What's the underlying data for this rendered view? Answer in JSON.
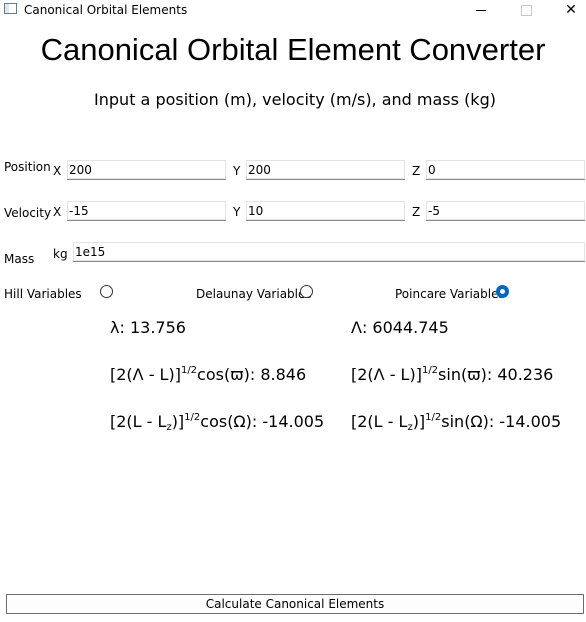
{
  "window": {
    "title": "Canonical Orbital Elements",
    "close_glyph": "✕"
  },
  "header": {
    "title": "Canonical Orbital Element Converter",
    "subtitle": "Input a position (m), velocity (m/s), and mass (kg)"
  },
  "position": {
    "label": "Position",
    "x_label": "X",
    "x_value": "200",
    "y_label": "Y",
    "y_value": "200",
    "z_label": "Z",
    "z_value": "0"
  },
  "velocity": {
    "label": "Velocity",
    "x_label": "X",
    "x_value": "-15",
    "y_label": "Y",
    "y_value": "10",
    "z_label": "Z",
    "z_value": "-5"
  },
  "mass": {
    "label": "Mass",
    "unit": "kg",
    "value": "1e15"
  },
  "variable_options": {
    "selected": "Poincare Variables",
    "options": [
      "Hill Variables",
      "Delaunay Variables",
      "Poincare Variables"
    ]
  },
  "results": {
    "lambda": {
      "label": "λ: ",
      "value": "13.756"
    },
    "Lambda": {
      "label": "Λ: ",
      "value": "6044.745"
    },
    "xi": {
      "prefix": "[2(Λ - L)]",
      "exp": "1/2",
      "suffix": "cos(ϖ): ",
      "value": "8.846"
    },
    "eta": {
      "prefix": "[2(Λ - L)]",
      "exp": "1/2",
      "suffix": "sin(ϖ): ",
      "value": "40.236"
    },
    "p": {
      "prefix": "[2(L - L",
      "sub": "z",
      "mid": ")]",
      "exp": "1/2",
      "suffix": "cos(Ω): ",
      "value": "-14.005"
    },
    "q": {
      "prefix": "[2(L - L",
      "sub": "z",
      "mid": ")]",
      "exp": "1/2",
      "suffix": "sin(Ω): ",
      "value": "-14.005"
    }
  },
  "actions": {
    "calculate_label": "Calculate Canonical Elements"
  }
}
